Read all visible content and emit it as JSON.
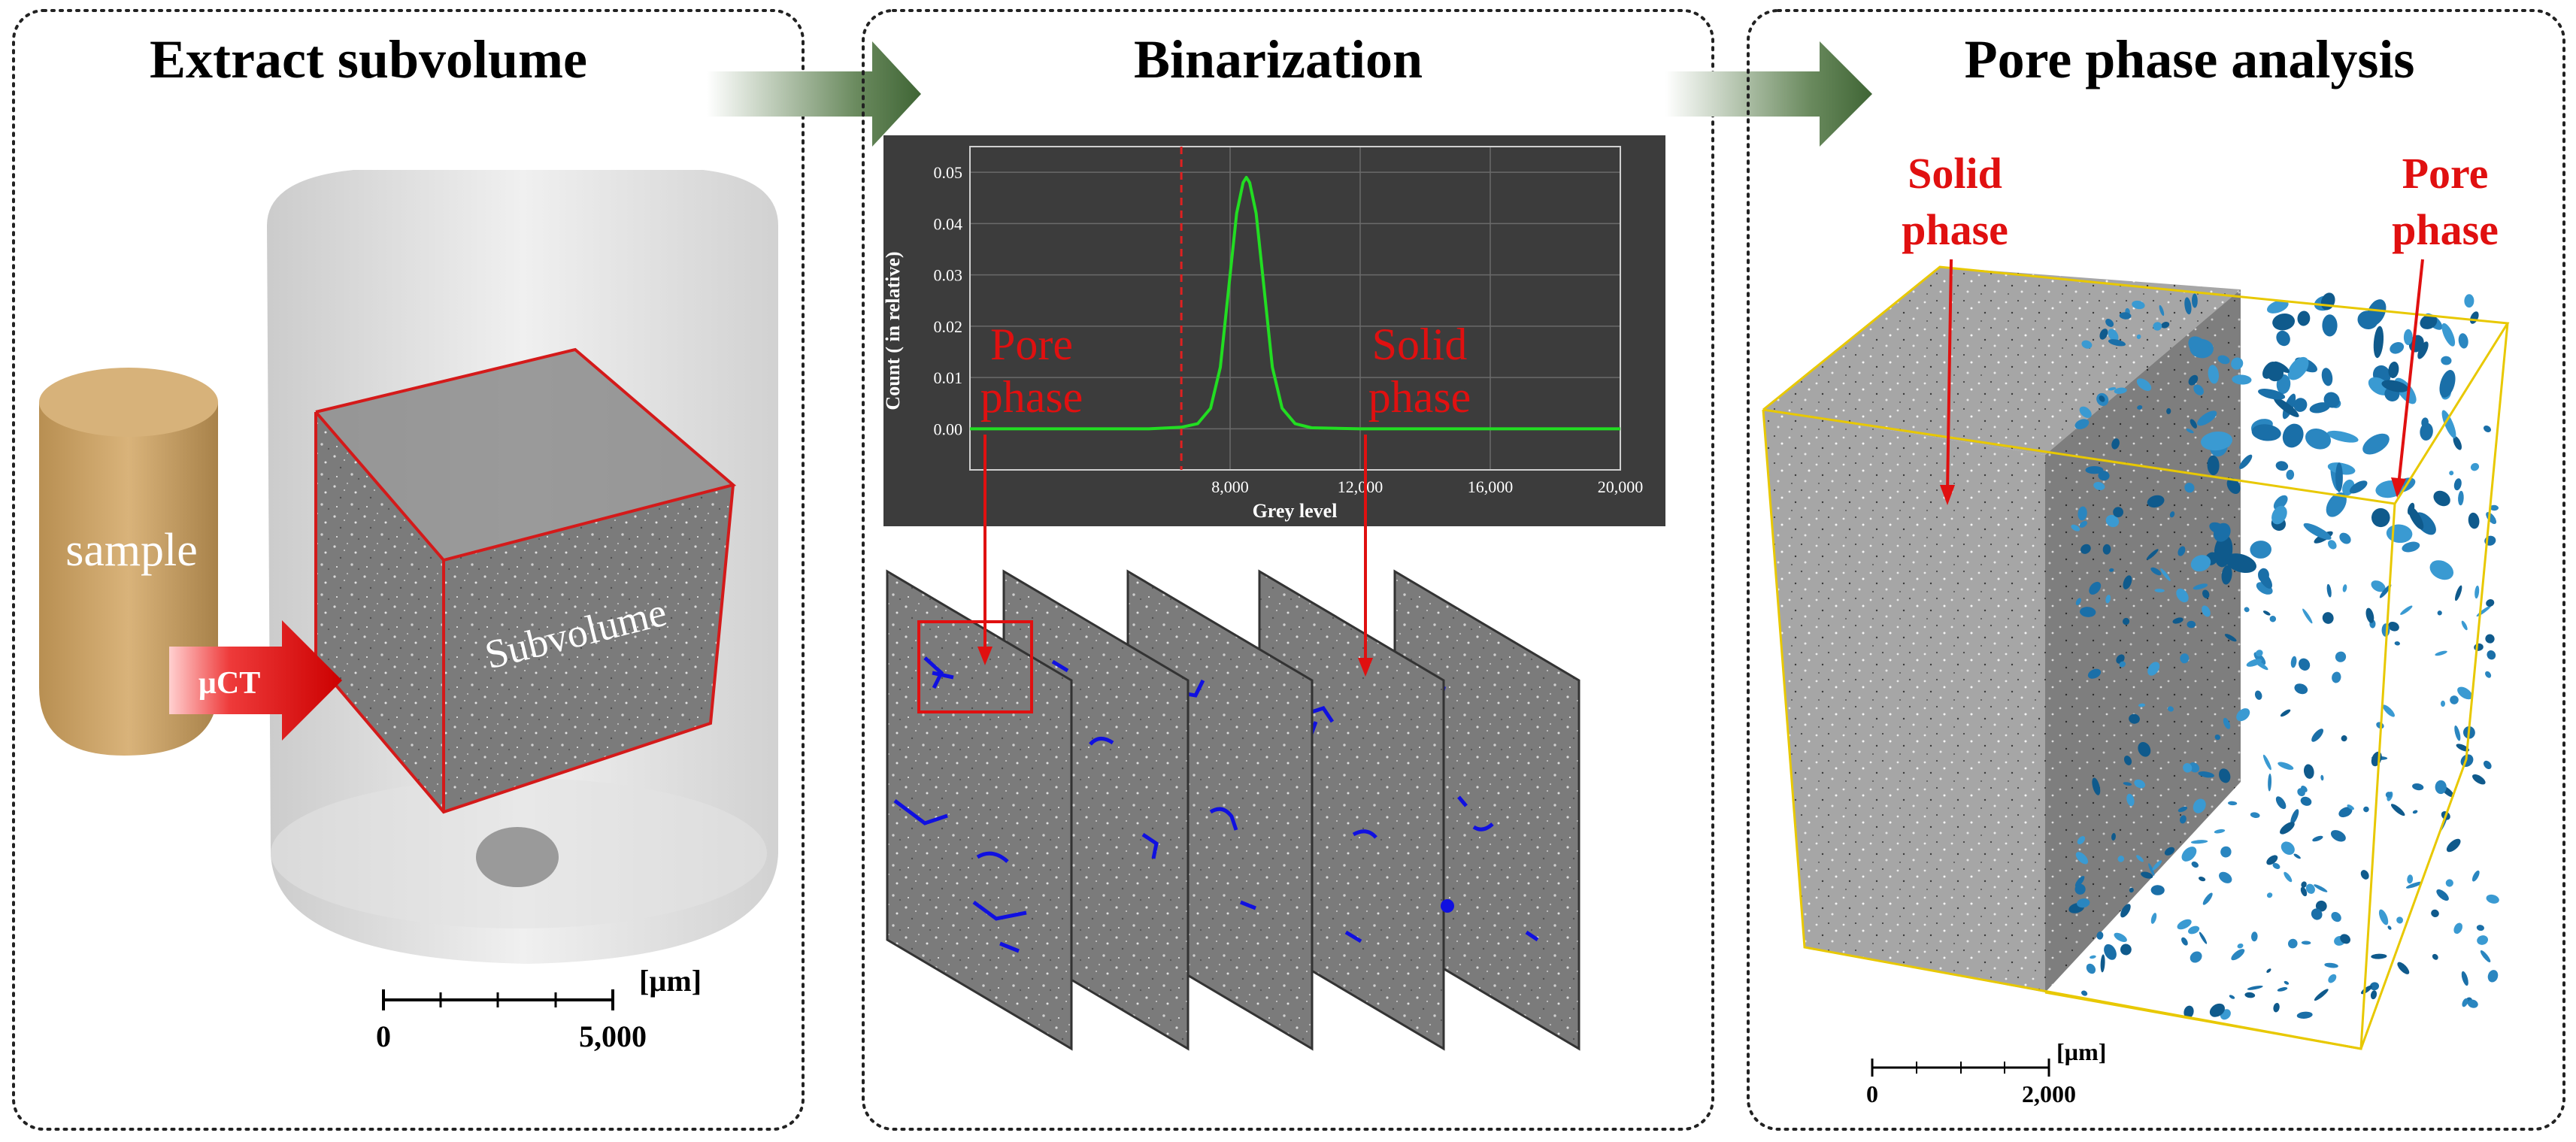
{
  "panels": {
    "extract": {
      "title": "Extract subvolume",
      "sample_label": "sample",
      "uct_label": "µCT",
      "subvolume_label": "Subvolume",
      "scale": {
        "unit": "[µm]",
        "start": "0",
        "end": "5,000"
      }
    },
    "binarization": {
      "title": "Binarization",
      "pore_label_line1": "Pore",
      "pore_label_line2": "phase",
      "solid_label_line1": "Solid",
      "solid_label_line2": "phase"
    },
    "pore_analysis": {
      "title": "Pore phase analysis",
      "solid_label_line1": "Solid",
      "solid_label_line2": "phase",
      "pore_label_line1": "Pore",
      "pore_label_line2": "phase",
      "scale": {
        "unit": "[µm]",
        "start": "0",
        "end": "2,000"
      }
    }
  },
  "chart_data": {
    "type": "line",
    "title": "",
    "xlabel": "Grey level",
    "ylabel": "Count ( in relative)",
    "xlim": [
      0,
      20000
    ],
    "ylim": [
      -0.008,
      0.055
    ],
    "xticks": [
      8000,
      12000,
      16000,
      20000
    ],
    "xtick_labels": [
      "8,000",
      "12,000",
      "16,000",
      "20,000"
    ],
    "yticks": [
      0.0,
      0.01,
      0.02,
      0.03,
      0.04,
      0.05
    ],
    "ytick_labels": [
      "0.00",
      "0.01",
      "0.02",
      "0.03",
      "0.04",
      "0.05"
    ],
    "threshold": 6500,
    "series": [
      {
        "name": "histogram",
        "color": "#22dd22",
        "x": [
          0,
          2000,
          4000,
          5500,
          6500,
          7000,
          7400,
          7700,
          8000,
          8200,
          8400,
          8500,
          8600,
          8800,
          9000,
          9300,
          9600,
          10000,
          10500,
          12000,
          16000,
          20000
        ],
        "y": [
          0.0,
          0.0,
          0.0,
          0.0,
          0.0003,
          0.001,
          0.004,
          0.012,
          0.03,
          0.042,
          0.048,
          0.049,
          0.048,
          0.042,
          0.03,
          0.012,
          0.004,
          0.001,
          0.0002,
          0.0,
          0.0,
          0.0
        ]
      }
    ]
  },
  "colors": {
    "accent_red": "#e01010",
    "arrow_green": "#4a7040",
    "pore_blue": "#1a6fa8",
    "chart_bg": "#3c3c3c",
    "curve_green": "#22dd22",
    "box_yellow": "#e8c800"
  }
}
